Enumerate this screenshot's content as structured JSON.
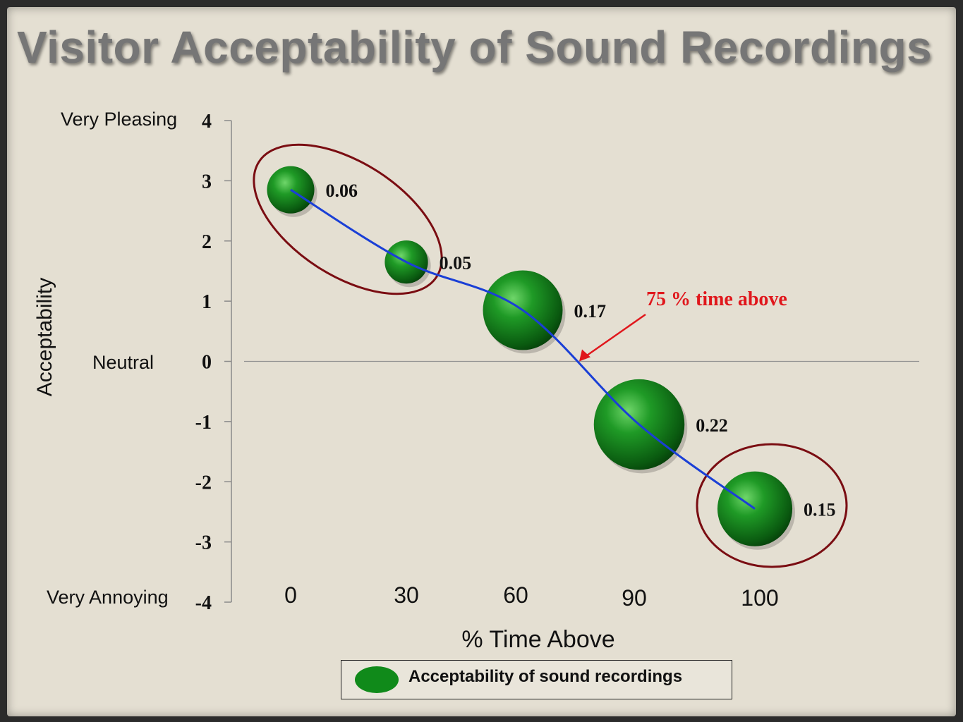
{
  "title": "Visitor Acceptability of Sound Recordings",
  "labels": {
    "very_pleasing": "Very Pleasing",
    "neutral": "Neutral",
    "very_annoying": "Very Annoying"
  },
  "legend": {
    "label": "Acceptability of sound recordings",
    "color": "#108a1a"
  },
  "annotation": {
    "text": "75 % time above",
    "color": "#e0171c"
  },
  "chart_data": {
    "type": "scatter",
    "title": "Visitor Acceptability of Sound Recordings",
    "xlabel": "% Time Above",
    "ylabel": "Acceptability",
    "ylim": [
      -4,
      4
    ],
    "yticks": [
      "4",
      "3",
      "2",
      "1",
      "0",
      "-1",
      "-2",
      "-3",
      "-4"
    ],
    "xticks": [
      "0",
      "30",
      "60",
      "90",
      "100"
    ],
    "grid": false,
    "legend_position": "bottom",
    "series": [
      {
        "name": "Acceptability of sound recordings",
        "color": "#108a1a",
        "points": [
          {
            "x": 0,
            "y": 2.85,
            "size": 0.06,
            "label": "0.06"
          },
          {
            "x": 30,
            "y": 1.65,
            "size": 0.05,
            "label": "0.05"
          },
          {
            "x": 60,
            "y": 0.85,
            "size": 0.17,
            "label": "0.17"
          },
          {
            "x": 90,
            "y": -1.05,
            "size": 0.22,
            "label": "0.22"
          },
          {
            "x": 100,
            "y": -2.45,
            "size": 0.15,
            "label": "0.15"
          }
        ]
      }
    ],
    "trend_color": "#1a3fd6",
    "highlight_color": "#7a0d12",
    "annotations": [
      {
        "text": "75 % time above",
        "y": 0
      }
    ]
  }
}
